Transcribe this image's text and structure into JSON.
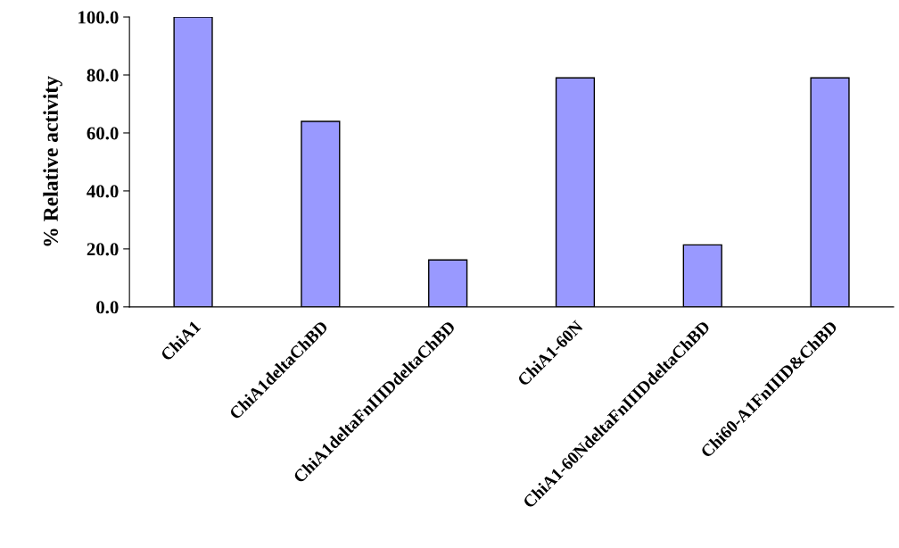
{
  "chart_data": {
    "type": "bar",
    "ylabel": "% Relative activity",
    "categories": [
      "ChiA1",
      "ChiA1deltaChBD",
      "ChiA1deltaFnIIIDdeltaChBD",
      "ChiA1-60N",
      "ChiA1-60NdeltaFnIIIDdeltaChBD",
      "Chi60-A1FnIIID&ChBD"
    ],
    "values": [
      100.0,
      64.0,
      16.2,
      79.0,
      21.4,
      79.0
    ],
    "color": "#9999ff",
    "ylim": [
      0,
      100
    ],
    "yticks": [
      {
        "value": 0,
        "label": "0.0"
      },
      {
        "value": 20,
        "label": "20.0"
      },
      {
        "value": 40,
        "label": "40.0"
      },
      {
        "value": 60,
        "label": "60.0"
      },
      {
        "value": 80,
        "label": "80.0"
      },
      {
        "value": 100,
        "label": "100.0"
      }
    ],
    "grid": false,
    "legend": false
  }
}
